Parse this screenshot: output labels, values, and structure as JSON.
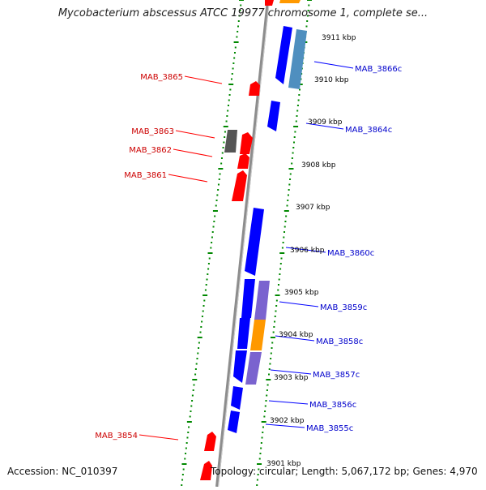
{
  "title": "Mycobacterium abscessus ATCC 19977 chromosome 1, complete se...",
  "footer": {
    "accession": "Accession: NC_010397",
    "summary": "Topology: circular; Length: 5,067,172 bp; Genes: 4,970"
  },
  "colors": {
    "forward_gene": "#ff0000",
    "reverse_gene": "#0000ff",
    "reverse_gene_alt": "#4f8fbf",
    "gray_gene": "#555555",
    "purple_feature": "#7a63cf",
    "orange_feature": "#ff9900",
    "ticks": "#008800",
    "axis": "#888888"
  },
  "ruler_ticks": [
    "3911 kbp",
    "3910 kbp",
    "3909 kbp",
    "3908 kbp",
    "3907 kbp",
    "3906 kbp",
    "3905 kbp",
    "3904 kbp",
    "3903 kbp",
    "3902 kbp",
    "3901 kbp"
  ],
  "forward_genes": [
    "MAB_3865",
    "MAB_3863",
    "MAB_3862",
    "MAB_3861",
    "MAB_3854"
  ],
  "reverse_genes": [
    "MAB_3866c",
    "MAB_3864c",
    "MAB_3860c",
    "MAB_3859c",
    "MAB_3858c",
    "MAB_3857c",
    "MAB_3856c",
    "MAB_3855c"
  ]
}
